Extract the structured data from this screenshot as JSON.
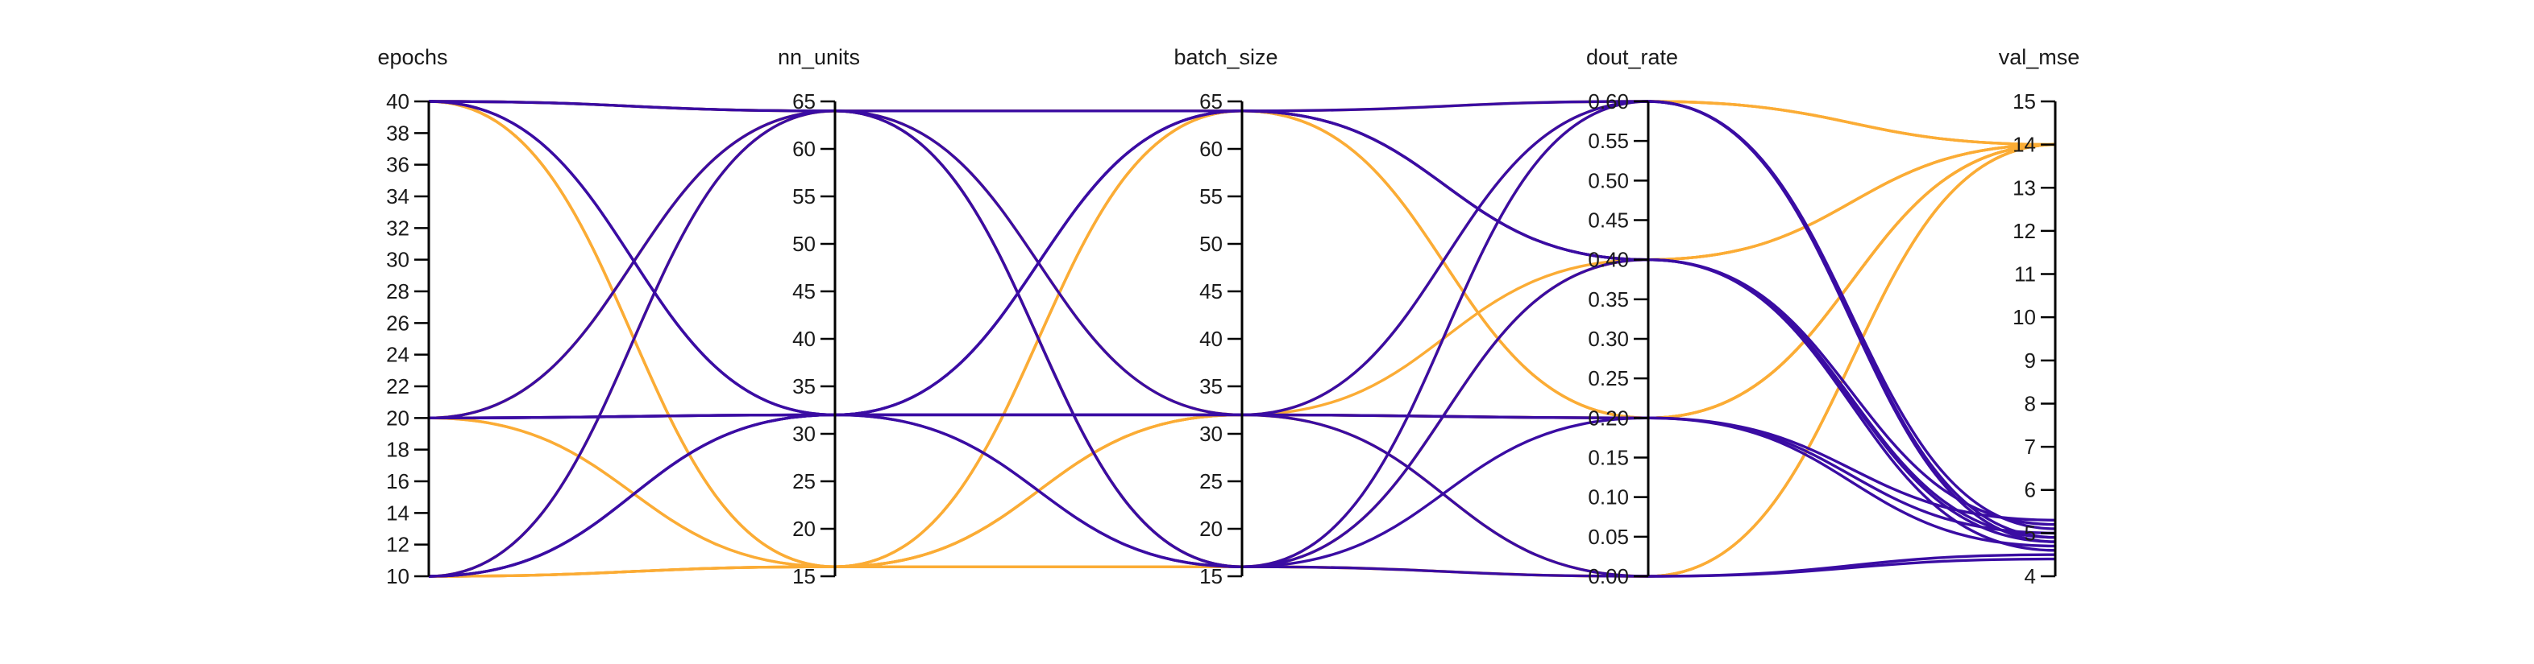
{
  "chart_data": {
    "type": "parallel_coordinates",
    "axes": [
      {
        "name": "epochs",
        "min": 10,
        "max": 40,
        "ticks": [
          10,
          12,
          14,
          16,
          18,
          20,
          22,
          24,
          26,
          28,
          30,
          32,
          34,
          36,
          38,
          40
        ],
        "tick_labels": [
          "10",
          "12",
          "14",
          "16",
          "18",
          "20",
          "22",
          "24",
          "26",
          "28",
          "30",
          "32",
          "34",
          "36",
          "38",
          "40"
        ]
      },
      {
        "name": "nn_units",
        "min": 15,
        "max": 65,
        "ticks": [
          15,
          20,
          25,
          30,
          35,
          40,
          45,
          50,
          55,
          60,
          65
        ],
        "tick_labels": [
          "15",
          "20",
          "25",
          "30",
          "35",
          "40",
          "45",
          "50",
          "55",
          "60",
          "65"
        ]
      },
      {
        "name": "batch_size",
        "min": 15,
        "max": 65,
        "ticks": [
          15,
          20,
          25,
          30,
          35,
          40,
          45,
          50,
          55,
          60,
          65
        ],
        "tick_labels": [
          "15",
          "20",
          "25",
          "30",
          "35",
          "40",
          "45",
          "50",
          "55",
          "60",
          "65"
        ]
      },
      {
        "name": "dout_rate",
        "min": 0,
        "max": 0.6,
        "ticks": [
          0,
          0.05,
          0.1,
          0.15,
          0.2,
          0.25,
          0.3,
          0.35,
          0.4,
          0.45,
          0.5,
          0.55,
          0.6
        ],
        "tick_labels": [
          "0.00",
          "0.05",
          "0.10",
          "0.15",
          "0.20",
          "0.25",
          "0.30",
          "0.35",
          "0.40",
          "0.45",
          "0.50",
          "0.55",
          "0.60"
        ]
      },
      {
        "name": "val_mse",
        "min": 4,
        "max": 15,
        "ticks": [
          4,
          5,
          6,
          7,
          8,
          9,
          10,
          11,
          12,
          13,
          14,
          15
        ],
        "tick_labels": [
          "4",
          "5",
          "6",
          "7",
          "8",
          "9",
          "10",
          "11",
          "12",
          "13",
          "14",
          "15"
        ]
      }
    ],
    "colors": {
      "low_mse": "#3a0ca3",
      "high_mse": "#fbac35"
    },
    "records": [
      [
        40,
        64,
        16,
        0.4,
        5.2
      ],
      [
        40,
        32,
        64,
        0.4,
        4.9
      ],
      [
        40,
        32,
        32,
        0.2,
        4.7
      ],
      [
        20,
        32,
        16,
        0.6,
        4.8
      ],
      [
        20,
        32,
        32,
        0.2,
        5.0
      ],
      [
        10,
        32,
        64,
        0.4,
        4.6
      ],
      [
        10,
        32,
        32,
        0.0,
        4.5
      ],
      [
        10,
        64,
        64,
        0.6,
        5.1
      ],
      [
        20,
        64,
        16,
        0.2,
        5.3
      ],
      [
        10,
        32,
        16,
        0.0,
        4.4
      ],
      [
        40,
        64,
        32,
        0.6,
        4.9
      ],
      [
        20,
        32,
        64,
        0.4,
        4.8
      ],
      [
        40,
        16,
        16,
        0.0,
        14
      ],
      [
        40,
        64,
        64,
        0.2,
        14
      ],
      [
        20,
        16,
        64,
        0.4,
        14
      ],
      [
        20,
        64,
        16,
        0.0,
        14
      ],
      [
        10,
        64,
        32,
        0.0,
        14
      ],
      [
        10,
        16,
        32,
        0.6,
        14
      ],
      [
        40,
        16,
        64,
        0.2,
        14
      ],
      [
        10,
        64,
        16,
        0.6,
        14
      ],
      [
        20,
        16,
        32,
        0.4,
        14
      ],
      [
        10,
        16,
        64,
        0.2,
        14
      ],
      [
        40,
        16,
        32,
        0.0,
        14
      ],
      [
        20,
        64,
        32,
        0.2,
        14
      ],
      [
        10,
        16,
        16,
        0.4,
        14
      ],
      [
        20,
        64,
        64,
        0.6,
        14
      ],
      [
        40,
        64,
        16,
        0.4,
        14
      ],
      [
        10,
        16,
        32,
        0.2,
        14
      ]
    ]
  }
}
